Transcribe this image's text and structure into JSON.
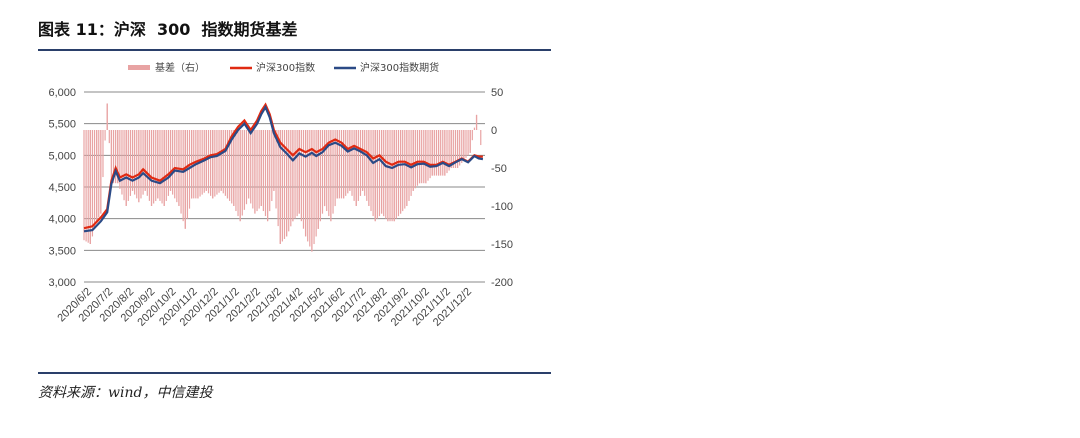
{
  "figure": {
    "title": "图表 11：沪深  300  指数期货基差",
    "source": "资料来源：wind，中信建投"
  },
  "chart_data": {
    "type": "line",
    "legend": [
      "基差（右）",
      "沪深300指数",
      "沪深300指数期货"
    ],
    "legend_position": "top",
    "colors": {
      "basis": "#e8a3a3",
      "index": "#e02a12",
      "futures": "#2b4a86",
      "grid": "#8a8a8a"
    },
    "y_left": {
      "ticks": [
        "6,000",
        "5,500",
        "5,000",
        "4,500",
        "4,000",
        "3,500",
        "3,000"
      ],
      "range": [
        3000,
        6000
      ]
    },
    "y_right": {
      "ticks": [
        "50",
        "0",
        "-50",
        "-100",
        "-150",
        "-200"
      ],
      "range": [
        -200,
        50
      ]
    },
    "x_labels": [
      "2020/6/2",
      "2020/7/2",
      "2020/8/2",
      "2020/9/2",
      "2020/10/2",
      "2020/11/2",
      "2020/12/2",
      "2021/1/2",
      "2021/2/2",
      "2021/3/2",
      "2021/4/2",
      "2021/5/2",
      "2021/6/2",
      "2021/7/2",
      "2021/8/2",
      "2021/9/2",
      "2021/10/2",
      "2021/11/2",
      "2021/12/2"
    ],
    "x_range": [
      0,
      19
    ],
    "index_series": [
      [
        0,
        3850
      ],
      [
        0.4,
        3880
      ],
      [
        0.8,
        4020
      ],
      [
        1.1,
        4150
      ],
      [
        1.3,
        4600
      ],
      [
        1.5,
        4800
      ],
      [
        1.7,
        4650
      ],
      [
        2,
        4700
      ],
      [
        2.3,
        4650
      ],
      [
        2.6,
        4700
      ],
      [
        2.8,
        4780
      ],
      [
        3.2,
        4650
      ],
      [
        3.6,
        4600
      ],
      [
        4,
        4700
      ],
      [
        4.3,
        4800
      ],
      [
        4.7,
        4780
      ],
      [
        5,
        4850
      ],
      [
        5.3,
        4900
      ],
      [
        5.7,
        4950
      ],
      [
        6,
        5000
      ],
      [
        6.3,
        5020
      ],
      [
        6.7,
        5100
      ],
      [
        7,
        5300
      ],
      [
        7.3,
        5450
      ],
      [
        7.6,
        5550
      ],
      [
        7.9,
        5400
      ],
      [
        8.2,
        5550
      ],
      [
        8.4,
        5700
      ],
      [
        8.6,
        5800
      ],
      [
        8.8,
        5650
      ],
      [
        9,
        5400
      ],
      [
        9.3,
        5200
      ],
      [
        9.6,
        5100
      ],
      [
        9.9,
        5000
      ],
      [
        10.2,
        5100
      ],
      [
        10.5,
        5050
      ],
      [
        10.8,
        5100
      ],
      [
        11,
        5050
      ],
      [
        11.3,
        5100
      ],
      [
        11.6,
        5200
      ],
      [
        11.9,
        5250
      ],
      [
        12.2,
        5200
      ],
      [
        12.5,
        5100
      ],
      [
        12.8,
        5150
      ],
      [
        13.1,
        5100
      ],
      [
        13.4,
        5050
      ],
      [
        13.7,
        4950
      ],
      [
        14,
        5000
      ],
      [
        14.3,
        4900
      ],
      [
        14.6,
        4850
      ],
      [
        14.9,
        4900
      ],
      [
        15.2,
        4900
      ],
      [
        15.5,
        4850
      ],
      [
        15.8,
        4900
      ],
      [
        16.1,
        4900
      ],
      [
        16.4,
        4850
      ],
      [
        16.7,
        4850
      ],
      [
        17,
        4900
      ],
      [
        17.3,
        4850
      ],
      [
        17.6,
        4900
      ],
      [
        17.9,
        4950
      ],
      [
        18.2,
        4900
      ],
      [
        18.5,
        5000
      ],
      [
        18.7,
        4980
      ],
      [
        18.9,
        4980
      ]
    ],
    "futures_series": [
      [
        0,
        3800
      ],
      [
        0.4,
        3820
      ],
      [
        0.8,
        3960
      ],
      [
        1.1,
        4100
      ],
      [
        1.3,
        4550
      ],
      [
        1.5,
        4750
      ],
      [
        1.7,
        4600
      ],
      [
        2,
        4650
      ],
      [
        2.3,
        4600
      ],
      [
        2.6,
        4650
      ],
      [
        2.8,
        4720
      ],
      [
        3.2,
        4600
      ],
      [
        3.6,
        4560
      ],
      [
        4,
        4650
      ],
      [
        4.3,
        4760
      ],
      [
        4.7,
        4740
      ],
      [
        5,
        4800
      ],
      [
        5.3,
        4860
      ],
      [
        5.7,
        4920
      ],
      [
        6,
        4970
      ],
      [
        6.3,
        4990
      ],
      [
        6.7,
        5070
      ],
      [
        7,
        5250
      ],
      [
        7.3,
        5400
      ],
      [
        7.6,
        5500
      ],
      [
        7.9,
        5350
      ],
      [
        8.2,
        5500
      ],
      [
        8.4,
        5650
      ],
      [
        8.6,
        5760
      ],
      [
        8.8,
        5600
      ],
      [
        9,
        5350
      ],
      [
        9.3,
        5130
      ],
      [
        9.6,
        5030
      ],
      [
        9.9,
        4920
      ],
      [
        10.2,
        5030
      ],
      [
        10.5,
        4980
      ],
      [
        10.8,
        5040
      ],
      [
        11,
        4990
      ],
      [
        11.3,
        5050
      ],
      [
        11.6,
        5160
      ],
      [
        11.9,
        5200
      ],
      [
        12.2,
        5150
      ],
      [
        12.5,
        5060
      ],
      [
        12.8,
        5110
      ],
      [
        13.1,
        5060
      ],
      [
        13.4,
        5000
      ],
      [
        13.7,
        4880
      ],
      [
        14,
        4940
      ],
      [
        14.3,
        4830
      ],
      [
        14.6,
        4800
      ],
      [
        14.9,
        4850
      ],
      [
        15.2,
        4860
      ],
      [
        15.5,
        4810
      ],
      [
        15.8,
        4860
      ],
      [
        16.1,
        4870
      ],
      [
        16.4,
        4820
      ],
      [
        16.7,
        4830
      ],
      [
        17,
        4880
      ],
      [
        17.3,
        4830
      ],
      [
        17.6,
        4890
      ],
      [
        17.9,
        4940
      ],
      [
        18.2,
        4890
      ],
      [
        18.5,
        4990
      ],
      [
        18.7,
        4950
      ],
      [
        18.9,
        4940
      ]
    ],
    "basis_series": [
      [
        0,
        -145
      ],
      [
        0.3,
        -150
      ],
      [
        0.6,
        -120
      ],
      [
        0.8,
        -110
      ],
      [
        1.1,
        35
      ],
      [
        1.3,
        -70
      ],
      [
        1.6,
        -70
      ],
      [
        2,
        -100
      ],
      [
        2.3,
        -80
      ],
      [
        2.6,
        -95
      ],
      [
        2.9,
        -80
      ],
      [
        3.2,
        -100
      ],
      [
        3.5,
        -90
      ],
      [
        3.8,
        -100
      ],
      [
        4.1,
        -80
      ],
      [
        4.5,
        -100
      ],
      [
        4.8,
        -130
      ],
      [
        5.1,
        -90
      ],
      [
        5.4,
        -90
      ],
      [
        5.8,
        -80
      ],
      [
        6.1,
        -90
      ],
      [
        6.5,
        -80
      ],
      [
        6.8,
        -90
      ],
      [
        7.1,
        -100
      ],
      [
        7.4,
        -120
      ],
      [
        7.8,
        -90
      ],
      [
        8.1,
        -110
      ],
      [
        8.4,
        -100
      ],
      [
        8.7,
        -120
      ],
      [
        9,
        -80
      ],
      [
        9.3,
        -150
      ],
      [
        9.6,
        -140
      ],
      [
        9.9,
        -120
      ],
      [
        10.2,
        -110
      ],
      [
        10.5,
        -140
      ],
      [
        10.8,
        -160
      ],
      [
        11.1,
        -130
      ],
      [
        11.4,
        -100
      ],
      [
        11.7,
        -120
      ],
      [
        12,
        -90
      ],
      [
        12.3,
        -90
      ],
      [
        12.6,
        -80
      ],
      [
        12.9,
        -100
      ],
      [
        13.2,
        -80
      ],
      [
        13.5,
        -100
      ],
      [
        13.8,
        -120
      ],
      [
        14.1,
        -110
      ],
      [
        14.4,
        -120
      ],
      [
        14.7,
        -120
      ],
      [
        15,
        -110
      ],
      [
        15.3,
        -100
      ],
      [
        15.6,
        -80
      ],
      [
        15.9,
        -70
      ],
      [
        16.2,
        -70
      ],
      [
        16.5,
        -60
      ],
      [
        16.8,
        -60
      ],
      [
        17.1,
        -60
      ],
      [
        17.4,
        -50
      ],
      [
        17.7,
        -50
      ],
      [
        18,
        -40
      ],
      [
        18.3,
        -30
      ],
      [
        18.6,
        20
      ],
      [
        18.8,
        -20
      ]
    ]
  }
}
